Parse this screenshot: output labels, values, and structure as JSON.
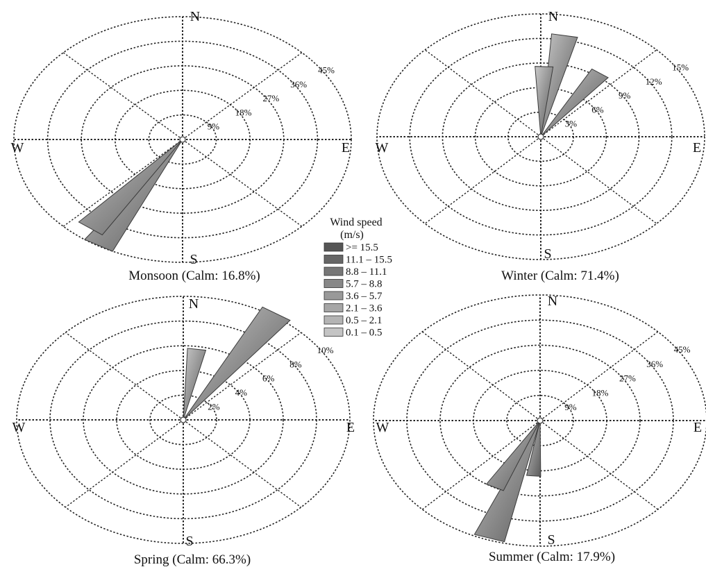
{
  "legend": {
    "title_line1": "Wind speed",
    "title_line2": "(m/s)",
    "bins": [
      ">= 15.5",
      "11.1 – 15.5",
      "8.8 – 11.1",
      "5.7 – 8.8",
      "3.6 – 5.7",
      "2.1 – 3.6",
      "0.5 – 2.1",
      "0.1 – 0.5"
    ],
    "colors": [
      "#555555",
      "#666666",
      "#777777",
      "#888888",
      "#999999",
      "#a6a6a6",
      "#b4b4b4",
      "#c4c4c4"
    ]
  },
  "chart_data": [
    {
      "type": "wind-rose",
      "caption": "Monsoon (Calm: 16.8%)",
      "compass": {
        "n": "N",
        "s": "S",
        "e": "E",
        "w": "W"
      },
      "rings": [
        9,
        18,
        27,
        36,
        45
      ],
      "ring_labels": [
        "9%",
        "18%",
        "27%",
        "36%",
        "45%"
      ],
      "petals": [
        {
          "direction_deg": 210,
          "frequency_pct": 45
        },
        {
          "direction_deg": 217,
          "frequency_pct": 41
        }
      ]
    },
    {
      "type": "wind-rose",
      "caption": "Winter (Calm: 71.4%)",
      "compass": {
        "n": "N",
        "s": "S",
        "e": "E",
        "w": "W"
      },
      "rings": [
        3,
        6,
        9,
        12,
        15
      ],
      "ring_labels": [
        "3%",
        "6%",
        "9%",
        "12%",
        "15%"
      ],
      "petals": [
        {
          "direction_deg": 10,
          "frequency_pct": 12.6
        },
        {
          "direction_deg": 2,
          "frequency_pct": 8.6
        },
        {
          "direction_deg": 35,
          "frequency_pct": 9.5
        }
      ]
    },
    {
      "type": "wind-rose",
      "caption": "Spring (Calm: 66.3%)",
      "compass": {
        "n": "N",
        "s": "S",
        "e": "E",
        "w": "W"
      },
      "rings": [
        2,
        4,
        6,
        8,
        10
      ],
      "ring_labels": [
        "2%",
        "4%",
        "6%",
        "8%",
        "10%"
      ],
      "petals": [
        {
          "direction_deg": 33,
          "frequency_pct": 10.3
        },
        {
          "direction_deg": 8,
          "frequency_pct": 5.8
        }
      ]
    },
    {
      "type": "wind-rose",
      "caption": "Summer (Calm: 17.9%)",
      "compass": {
        "n": "N",
        "s": "S",
        "e": "E",
        "w": "W"
      },
      "rings": [
        9,
        18,
        27,
        36,
        45
      ],
      "ring_labels": [
        "9%",
        "18%",
        "27%",
        "36%",
        "45%"
      ],
      "petals": [
        {
          "direction_deg": 198,
          "frequency_pct": 44.5
        },
        {
          "direction_deg": 207,
          "frequency_pct": 27
        },
        {
          "direction_deg": 185,
          "frequency_pct": 20
        }
      ]
    }
  ]
}
